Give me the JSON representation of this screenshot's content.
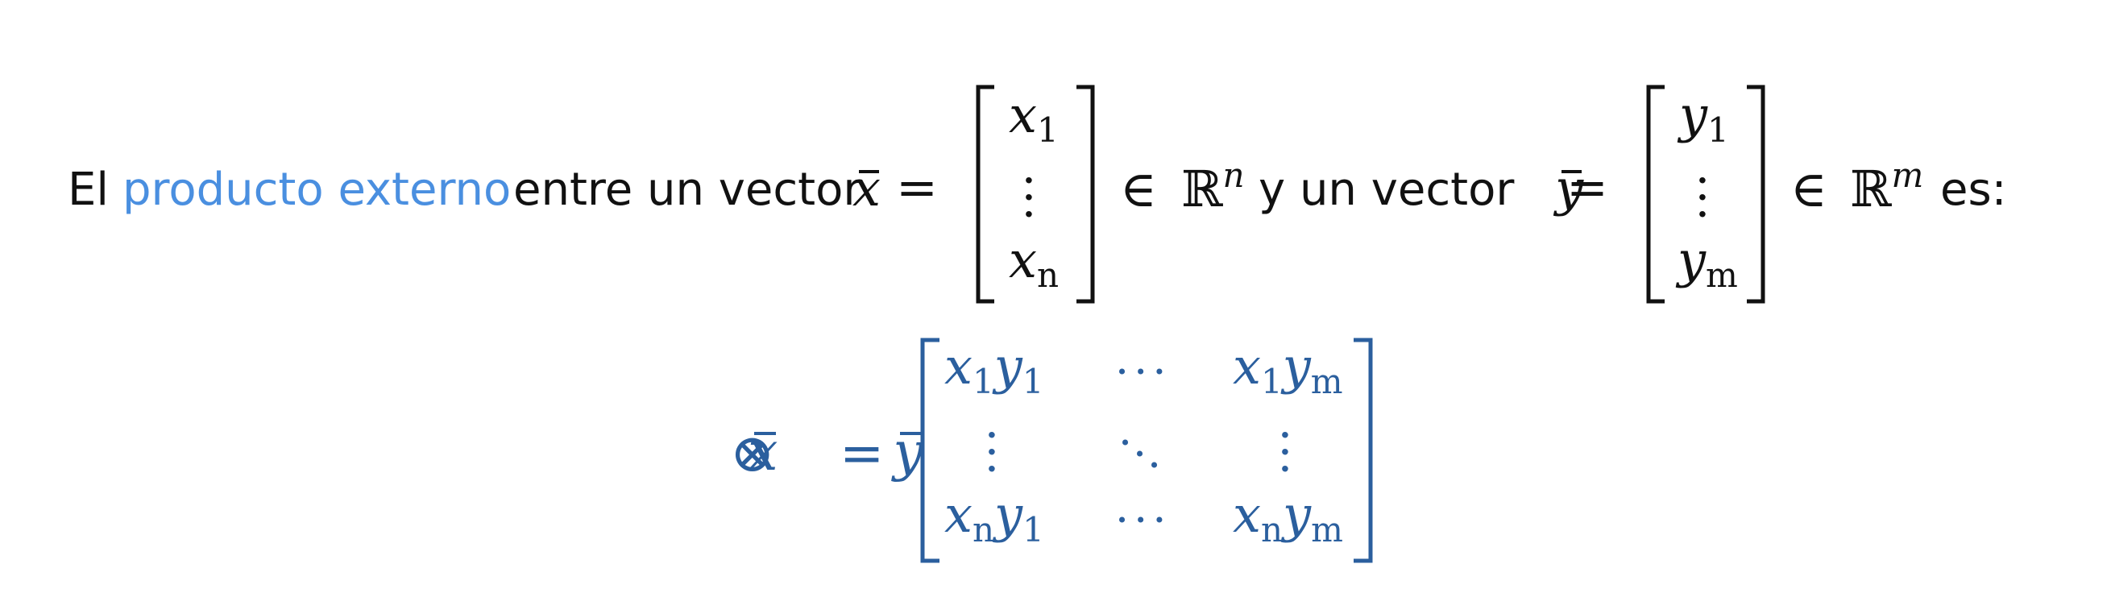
{
  "sentence": {
    "word_el": "El",
    "link_text": "producto externo",
    "word_between": "entre un vector",
    "word_y": "y un vector",
    "word_es": "es:"
  },
  "symbols": {
    "x_bar": "x",
    "y_bar": "y",
    "equals": "=",
    "element_of": "∈",
    "reals": "ℝ",
    "dim_n": "n",
    "dim_m": "m",
    "otimes": "⊗"
  },
  "vector_x": {
    "first_base": "x",
    "first_sub": "1",
    "last_base": "x",
    "last_sub": "n"
  },
  "vector_y": {
    "first_base": "y",
    "first_sub": "1",
    "last_base": "y",
    "last_sub": "m"
  },
  "matrix": {
    "r1c1": [
      "x",
      "1",
      "y",
      "1"
    ],
    "r1c3": [
      "x",
      "1",
      "y",
      "m"
    ],
    "r3c1": [
      "x",
      "n",
      "y",
      "1"
    ],
    "r3c3": [
      "x",
      "n",
      "y",
      "m"
    ]
  },
  "colors": {
    "text": "#111111",
    "link": "#4a8fe0",
    "formula": "#2b5f9e"
  }
}
